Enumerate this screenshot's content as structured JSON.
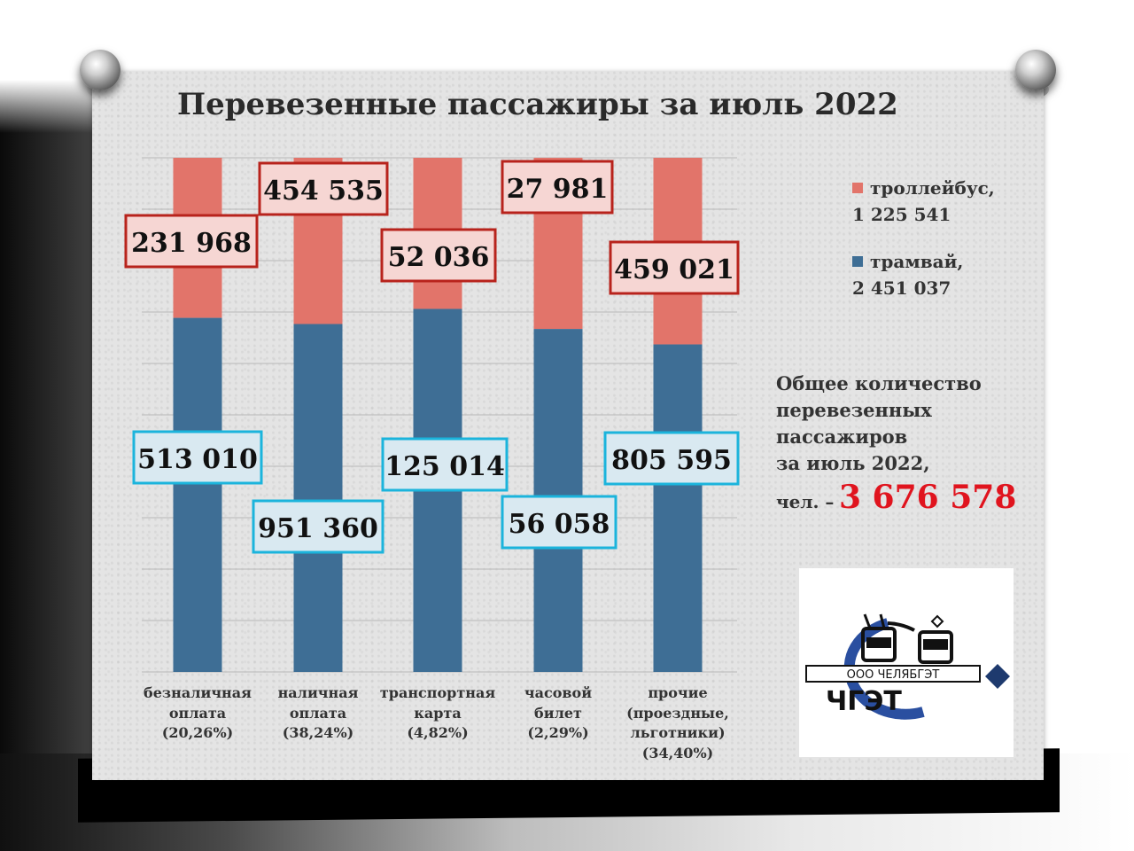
{
  "title": "Перевезенные пассажиры за июль 2022",
  "chart_data": {
    "type": "bar",
    "stacked": true,
    "normalized": true,
    "title": "Перевезенные пассажиры за июль 2022",
    "categories": [
      [
        "безналичная",
        "оплата",
        "(20,26%)"
      ],
      [
        "наличная",
        "оплата",
        "(38,24%)"
      ],
      [
        "транспортная",
        "карта",
        "(4,82%)"
      ],
      [
        "часовой",
        "билет",
        "(2,29%)"
      ],
      [
        "прочие",
        "(проездные,",
        "льготники)",
        "(34,40%)"
      ]
    ],
    "series": [
      {
        "name": "трамвай",
        "color": "#3e6e95",
        "values": [
          513010,
          951360,
          125014,
          56058,
          805595
        ],
        "labels": [
          "513 010",
          "951 360",
          "125 014",
          "56 058",
          "805 595"
        ]
      },
      {
        "name": "троллейбус",
        "color": "#e2746a",
        "values": [
          231968,
          454535,
          52036,
          27981,
          459021
        ],
        "labels": [
          "231 968",
          "454 535",
          "52 036",
          "27 981",
          "459 021"
        ]
      }
    ],
    "grid": true,
    "legend_position": "right"
  },
  "legend": [
    {
      "name": "троллейбус,",
      "total": "1 225 541",
      "color": "#e2746a"
    },
    {
      "name": "трамвай,",
      "total": "2 451 037",
      "color": "#3e6e95"
    }
  ],
  "total": {
    "lines": [
      "Общее количество",
      "перевезенных",
      "пассажиров",
      "за июль 2022,"
    ],
    "prefix": "чел. –",
    "value": "3 676 578"
  },
  "logo": {
    "company": "ООО ЧЕЛЯБГЭТ",
    "mark": "ЧГЭТ"
  }
}
